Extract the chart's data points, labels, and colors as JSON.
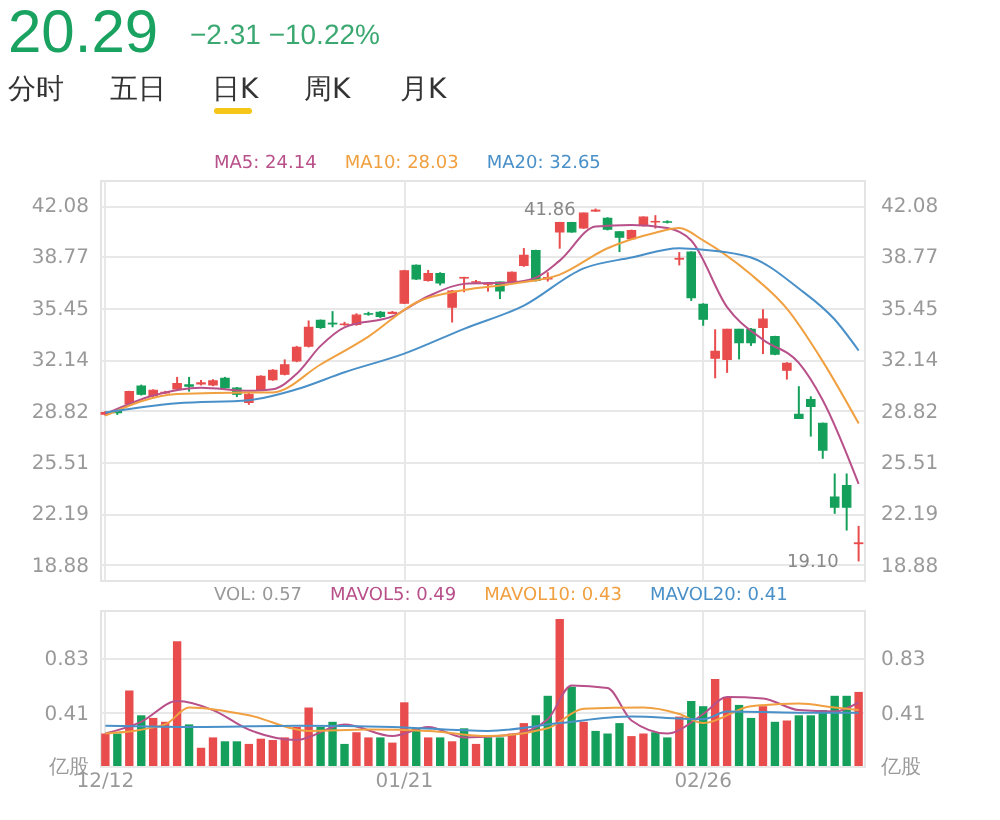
{
  "chart_data": [
    {
      "type": "candlestick",
      "title": "20.29",
      "subtitle": "−2.31 −10.22%",
      "annotations": [
        "分时",
        "五日",
        "日K",
        "周K",
        "月K",
        "41.86",
        "19.10"
      ],
      "categories": [
        null,
        null,
        null,
        null,
        null,
        null,
        null,
        null,
        null,
        null,
        null,
        null,
        null,
        null,
        null,
        null,
        null,
        null,
        null,
        null,
        null,
        null,
        null,
        null,
        null,
        null,
        null,
        null,
        null,
        null,
        null,
        null,
        null,
        null,
        null,
        null,
        null,
        null,
        null,
        null,
        null,
        null,
        null,
        null,
        null,
        null,
        null,
        null,
        null,
        null,
        null,
        null,
        null,
        null,
        null,
        null,
        null,
        null,
        null,
        null,
        null,
        null,
        null,
        null
      ],
      "ohlc": [
        [
          28.6,
          28.8,
          28.5,
          28.7
        ],
        [
          28.8,
          28.9,
          28.55,
          28.7
        ],
        [
          29.27,
          30.1,
          29.2,
          30.05
        ],
        [
          30.4,
          30.5,
          29.8,
          29.88
        ],
        [
          29.79,
          30.2,
          29.7,
          30.14
        ],
        [
          29.96,
          30.1,
          29.9,
          30.0
        ],
        [
          30.22,
          31.0,
          30.15,
          30.57
        ],
        [
          30.48,
          31.0,
          30.05,
          30.4
        ],
        [
          30.55,
          30.8,
          30.45,
          30.61
        ],
        [
          30.48,
          30.85,
          30.4,
          30.74
        ],
        [
          30.91,
          31.0,
          30.25,
          30.31
        ],
        [
          30.27,
          30.35,
          29.7,
          29.88
        ],
        [
          29.36,
          30.0,
          29.2,
          29.88
        ],
        [
          30.14,
          31.1,
          30.1,
          31.04
        ],
        [
          30.83,
          31.5,
          30.75,
          31.43
        ],
        [
          31.17,
          32.13,
          31.1,
          31.78
        ],
        [
          32.04,
          33.0,
          31.95,
          32.91
        ],
        [
          32.99,
          34.64,
          32.9,
          34.2
        ],
        [
          34.64,
          34.7,
          34.1,
          34.2
        ],
        [
          34.46,
          35.24,
          34.2,
          34.42
        ],
        [
          34.38,
          34.55,
          34.3,
          34.4
        ],
        [
          34.38,
          35.1,
          34.3,
          34.98
        ],
        [
          35.07,
          35.2,
          34.95,
          35.05
        ],
        [
          35.16,
          35.25,
          34.8,
          34.9
        ],
        [
          35.1,
          35.25,
          35.05,
          35.16
        ],
        [
          35.76,
          37.9,
          35.7,
          37.84
        ],
        [
          38.19,
          38.25,
          37.25,
          37.32
        ],
        [
          37.23,
          37.9,
          37.15,
          37.67
        ],
        [
          37.67,
          37.75,
          36.9,
          37.06
        ],
        [
          35.5,
          36.6,
          34.51,
          36.54
        ],
        [
          37.38,
          37.45,
          36.46,
          37.41
        ],
        [
          37.11,
          37.25,
          37.0,
          37.13
        ],
        [
          36.98,
          37.1,
          36.5,
          37.0
        ],
        [
          37.11,
          37.15,
          36.02,
          36.54
        ],
        [
          37.11,
          37.8,
          37.05,
          37.75
        ],
        [
          38.19,
          39.31,
          38.1,
          38.84
        ],
        [
          39.14,
          39.2,
          37.15,
          37.23
        ],
        [
          37.32,
          37.75,
          37.15,
          37.41
        ],
        [
          40.35,
          41.0,
          39.27,
          40.96
        ],
        [
          40.96,
          41.0,
          40.3,
          40.35
        ],
        [
          40.61,
          41.6,
          40.55,
          41.56
        ],
        [
          41.7,
          41.86,
          41.65,
          41.75
        ],
        [
          41.22,
          41.3,
          40.45,
          40.53
        ],
        [
          40.35,
          40.4,
          39.05,
          40.01
        ],
        [
          39.92,
          40.5,
          39.85,
          40.44
        ],
        [
          40.78,
          41.35,
          40.7,
          41.3
        ],
        [
          41.0,
          41.43,
          40.57,
          41.02
        ],
        [
          41.0,
          41.1,
          40.9,
          40.98
        ],
        [
          38.6,
          39.05,
          38.19,
          38.64
        ],
        [
          39.05,
          39.1,
          35.9,
          36.11
        ],
        [
          35.68,
          35.75,
          34.3,
          34.72
        ],
        [
          32.21,
          34.07,
          30.91,
          32.65
        ],
        [
          32.13,
          34.1,
          31.26,
          34.07
        ],
        [
          34.07,
          34.1,
          32.13,
          33.21
        ],
        [
          34.07,
          34.15,
          33.0,
          33.21
        ],
        [
          34.2,
          35.37,
          32.47,
          34.72
        ],
        [
          33.6,
          33.65,
          32.4,
          32.47
        ],
        [
          31.43,
          31.95,
          30.83,
          31.87
        ],
        [
          28.58,
          30.4,
          28.3,
          28.32
        ],
        [
          29.53,
          29.75,
          27.15,
          29.1
        ],
        [
          28.01,
          28.05,
          25.72,
          26.28
        ],
        [
          23.25,
          24.77,
          22.17,
          22.6
        ],
        [
          23.99,
          24.77,
          21.09,
          22.6
        ],
        [
          20.25,
          21.39,
          19.1,
          20.29
        ]
      ],
      "colors": [
        "#e84c4c",
        "#14a05a",
        "#e84c4c",
        "#14a05a",
        "#e84c4c",
        "#e84c4c",
        "#e84c4c",
        "#14a05a",
        "#e84c4c",
        "#e84c4c",
        "#14a05a",
        "#14a05a",
        "#e84c4c",
        "#e84c4c",
        "#e84c4c",
        "#e84c4c",
        "#e84c4c",
        "#e84c4c",
        "#14a05a",
        "#14a05a",
        "#e84c4c",
        "#e84c4c",
        "#14a05a",
        "#14a05a",
        "#e84c4c",
        "#e84c4c",
        "#14a05a",
        "#e84c4c",
        "#14a05a",
        "#e84c4c",
        "#e84c4c",
        "#e84c4c",
        "#e84c4c",
        "#14a05a",
        "#e84c4c",
        "#e84c4c",
        "#14a05a",
        "#e84c4c",
        "#e84c4c",
        "#14a05a",
        "#e84c4c",
        "#e84c4c",
        "#14a05a",
        "#14a05a",
        "#e84c4c",
        "#e84c4c",
        "#e84c4c",
        "#14a05a",
        "#e84c4c",
        "#14a05a",
        "#14a05a",
        "#e84c4c",
        "#e84c4c",
        "#14a05a",
        "#14a05a",
        "#e84c4c",
        "#14a05a",
        "#e84c4c",
        "#14a05a",
        "#14a05a",
        "#14a05a",
        "#14a05a",
        "#14a05a",
        "#e84c4c"
      ],
      "series": [
        {
          "name": "MA5: 24.14",
          "type": "line",
          "color": "#b8508a",
          "values": [
            28.6,
            null,
            null,
            null,
            29.8,
            null,
            null,
            null,
            30.3,
            null,
            null,
            null,
            30.1,
            null,
            30.2,
            null,
            31.2,
            null,
            33.0,
            null,
            34.2,
            null,
            null,
            null,
            34.9,
            null,
            null,
            36.2,
            null,
            null,
            37.0,
            null,
            null,
            null,
            37.1,
            null,
            37.4,
            null,
            38.5,
            null,
            null,
            40.7,
            null,
            null,
            40.8,
            null,
            null,
            40.6,
            null,
            39.8,
            null,
            null,
            35.5,
            null,
            null,
            33.4,
            null,
            null,
            31.9,
            null,
            29.5,
            null,
            null,
            24.1
          ]
        },
        {
          "name": "MA10: 28.03",
          "type": "line",
          "color": "#f0a040",
          "values": [
            28.5,
            null,
            null,
            null,
            null,
            null,
            29.9,
            null,
            null,
            null,
            null,
            null,
            30.0,
            null,
            30.0,
            null,
            null,
            null,
            31.8,
            null,
            null,
            null,
            33.6,
            null,
            null,
            null,
            35.8,
            null,
            null,
            null,
            36.6,
            null,
            null,
            null,
            37.0,
            null,
            null,
            null,
            37.6,
            null,
            null,
            null,
            39.3,
            null,
            null,
            null,
            40.3,
            null,
            40.6,
            null,
            39.8,
            null,
            null,
            null,
            37.6,
            null,
            null,
            35.4,
            null,
            null,
            32.0,
            null,
            null,
            28.0
          ]
        },
        {
          "name": "MA20: 32.65",
          "type": "line",
          "color": "#4a90c8",
          "values": [
            28.7,
            null,
            null,
            null,
            null,
            null,
            29.3,
            null,
            null,
            null,
            null,
            null,
            29.5,
            null,
            null,
            null,
            30.2,
            null,
            null,
            null,
            31.3,
            null,
            null,
            null,
            null,
            32.5,
            null,
            null,
            null,
            null,
            34.1,
            null,
            null,
            null,
            null,
            35.6,
            null,
            null,
            null,
            null,
            38.0,
            null,
            null,
            null,
            38.7,
            null,
            null,
            null,
            39.3,
            null,
            39.2,
            null,
            null,
            null,
            38.7,
            null,
            null,
            null,
            36.7,
            null,
            null,
            34.7,
            null,
            32.7
          ]
        }
      ],
      "ylim": [
        17.9,
        43.7
      ],
      "yticks": [
        18.88,
        22.19,
        25.51,
        28.82,
        32.14,
        35.45,
        38.77,
        42.08
      ],
      "y2lim": [
        17.9,
        43.7
      ],
      "y2ticks": [
        18.88,
        22.19,
        25.51,
        28.82,
        32.14,
        35.45,
        38.77,
        42.08
      ],
      "grid": true,
      "legend": "top",
      "tick_labels": "y"
    },
    {
      "type": "bar",
      "categories": [
        "12/12",
        null,
        null,
        null,
        null,
        null,
        null,
        null,
        null,
        null,
        null,
        null,
        null,
        null,
        null,
        null,
        null,
        null,
        null,
        null,
        null,
        null,
        null,
        null,
        null,
        "01/21",
        null,
        null,
        null,
        null,
        null,
        null,
        null,
        null,
        null,
        null,
        null,
        null,
        null,
        null,
        null,
        null,
        null,
        null,
        null,
        null,
        null,
        null,
        null,
        null,
        "02/26",
        null,
        null,
        null,
        null,
        null,
        null,
        null,
        null,
        null,
        null,
        null,
        null,
        null
      ],
      "series": [
        {
          "name": "VOL: 0.57",
          "type": "bar",
          "colors": [
            "#e84c4c",
            "#14a05a",
            "#e84c4c",
            "#14a05a",
            "#e84c4c",
            "#e84c4c",
            "#e84c4c",
            "#14a05a",
            "#e84c4c",
            "#e84c4c",
            "#14a05a",
            "#14a05a",
            "#e84c4c",
            "#e84c4c",
            "#e84c4c",
            "#e84c4c",
            "#e84c4c",
            "#e84c4c",
            "#14a05a",
            "#14a05a",
            "#14a05a",
            "#e84c4c",
            "#e84c4c",
            "#14a05a",
            "#e84c4c",
            "#e84c4c",
            "#14a05a",
            "#e84c4c",
            "#14a05a",
            "#e84c4c",
            "#14a05a",
            "#e84c4c",
            "#14a05a",
            "#14a05a",
            "#e84c4c",
            "#e84c4c",
            "#14a05a",
            "#14a05a",
            "#e84c4c",
            "#14a05a",
            "#e84c4c",
            "#14a05a",
            "#14a05a",
            "#14a05a",
            "#e84c4c",
            "#e84c4c",
            "#14a05a",
            "#14a05a",
            "#e84c4c",
            "#14a05a",
            "#14a05a",
            "#e84c4c",
            "#e84c4c",
            "#14a05a",
            "#14a05a",
            "#e84c4c",
            "#14a05a",
            "#e84c4c",
            "#14a05a",
            "#14a05a",
            "#14a05a",
            "#14a05a",
            "#14a05a",
            "#e84c4c"
          ],
          "values": [
            0.25,
            0.25,
            0.58,
            0.39,
            0.37,
            0.34,
            0.96,
            0.32,
            0.14,
            0.22,
            0.19,
            0.19,
            0.17,
            0.21,
            0.2,
            0.22,
            0.3,
            0.45,
            0.3,
            0.34,
            0.17,
            0.26,
            0.22,
            0.22,
            0.18,
            0.49,
            0.29,
            0.22,
            0.22,
            0.19,
            0.29,
            0.17,
            0.22,
            0.22,
            0.25,
            0.33,
            0.39,
            0.54,
            1.13,
            0.61,
            0.34,
            0.27,
            0.25,
            0.33,
            0.23,
            0.25,
            0.26,
            0.22,
            0.38,
            0.5,
            0.46,
            0.67,
            0.53,
            0.47,
            0.37,
            0.46,
            0.34,
            0.35,
            0.39,
            0.39,
            0.43,
            0.54,
            0.54,
            0.57
          ]
        },
        {
          "name": "MAVOL5: 0.49",
          "type": "line",
          "color": "#b8508a",
          "values": [
            0.25,
            null,
            null,
            0.34,
            null,
            null,
            0.5,
            null,
            null,
            0.43,
            null,
            null,
            0.28,
            null,
            null,
            null,
            0.2,
            null,
            null,
            null,
            0.32,
            null,
            null,
            null,
            0.23,
            null,
            null,
            0.3,
            null,
            null,
            0.22,
            null,
            null,
            null,
            0.24,
            null,
            null,
            0.36,
            null,
            0.62,
            null,
            null,
            0.6,
            null,
            0.35,
            null,
            null,
            0.25,
            null,
            null,
            0.4,
            null,
            0.53,
            null,
            null,
            0.52,
            null,
            null,
            0.43,
            null,
            null,
            0.42,
            null,
            0.49
          ]
        },
        {
          "name": "MAVOL10: 0.43",
          "type": "line",
          "color": "#f0a040",
          "values": [
            0.25,
            null,
            null,
            null,
            null,
            0.32,
            null,
            0.45,
            null,
            null,
            null,
            null,
            0.39,
            null,
            null,
            null,
            null,
            0.27,
            null,
            null,
            null,
            null,
            0.28,
            null,
            null,
            null,
            null,
            0.27,
            null,
            null,
            null,
            null,
            0.23,
            null,
            null,
            null,
            null,
            0.29,
            null,
            null,
            0.44,
            null,
            null,
            null,
            null,
            0.45,
            null,
            null,
            0.4,
            null,
            0.33,
            null,
            null,
            null,
            0.46,
            null,
            null,
            null,
            0.48,
            null,
            null,
            0.45,
            null,
            0.43
          ]
        },
        {
          "name": "MAVOL20: 0.41",
          "type": "line",
          "color": "#4a90c8",
          "values": [
            0.31,
            null,
            null,
            null,
            null,
            null,
            null,
            null,
            0.3,
            null,
            null,
            null,
            null,
            null,
            null,
            null,
            0.31,
            null,
            null,
            null,
            null,
            null,
            null,
            null,
            0.3,
            null,
            null,
            null,
            null,
            null,
            null,
            null,
            0.27,
            null,
            null,
            null,
            null,
            null,
            0.33,
            null,
            null,
            null,
            null,
            null,
            0.38,
            null,
            null,
            null,
            null,
            null,
            0.36,
            null,
            0.42,
            null,
            null,
            null,
            null,
            null,
            0.41,
            null,
            null,
            null,
            null,
            0.41
          ]
        }
      ],
      "ylim": [
        0,
        1.2
      ],
      "yticks": [
        {
          "value": 0,
          "label": "亿股"
        },
        0.41,
        0.83
      ],
      "y2lim": [
        0,
        1.2
      ],
      "y2ticks": [
        {
          "value": 0,
          "label": "亿股"
        },
        0.41,
        0.83
      ],
      "grid": true,
      "legend": "top"
    }
  ]
}
